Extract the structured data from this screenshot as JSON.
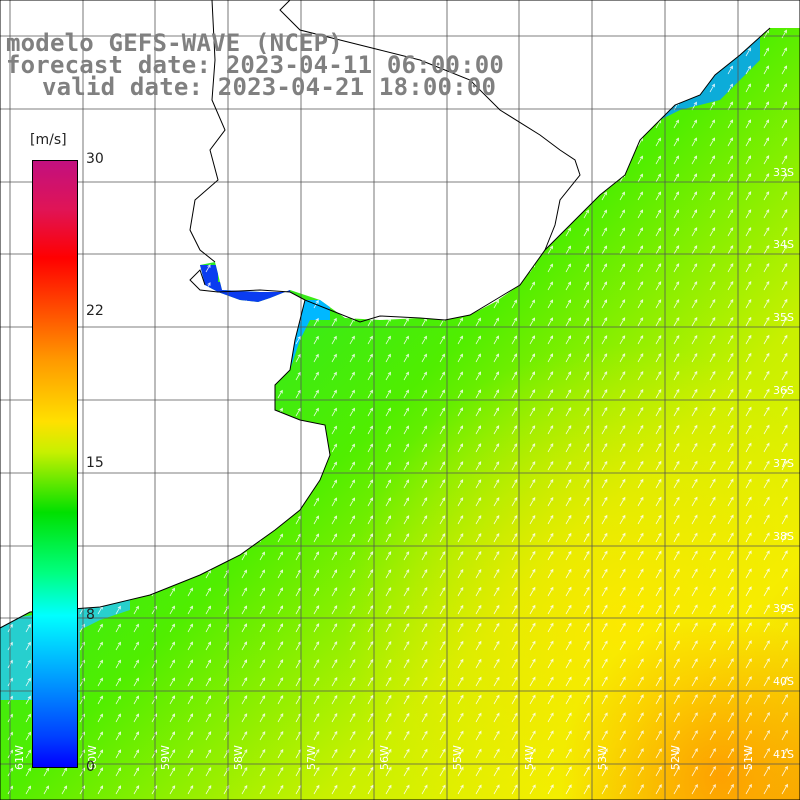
{
  "title": {
    "line1": "modelo GEFS-WAVE (NCEP)",
    "line2": "forecast date: 2023-04-11 06:00:00",
    "line3": "valid date: 2023-04-21 18:00:00"
  },
  "colorbar": {
    "unit": "[m/s]",
    "ticks": [
      "30",
      "22",
      "15",
      "8",
      "0"
    ],
    "tick_values": [
      30,
      22,
      15,
      8,
      0
    ]
  },
  "axes": {
    "lat_labels": [
      "33S",
      "34S",
      "35S",
      "36S",
      "37S",
      "38S",
      "39S",
      "40S",
      "41S"
    ],
    "lon_labels": [
      "61W",
      "60W",
      "59W",
      "58W",
      "57W",
      "56W",
      "55W",
      "54W",
      "53W",
      "52W",
      "51W"
    ]
  },
  "colors": {
    "land": "#ffffff",
    "coast": "#000000",
    "grid": "#555555",
    "wind_low": "#0000ff",
    "wind_mid": "#00e000",
    "wind_high": "#ffe000",
    "arrows": "#ffffff"
  },
  "field": {
    "variable": "wind speed",
    "direction": "arrows pointing to the north-east"
  }
}
